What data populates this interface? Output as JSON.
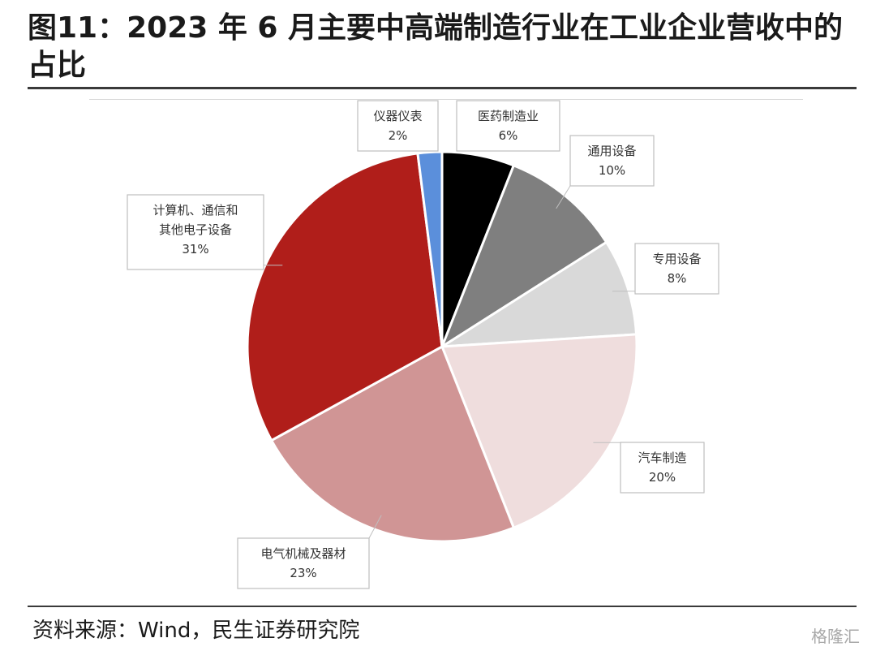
{
  "header": {
    "title": "图11：2023 年 6 月主要中高端制造行业在工业企业营收中的占比"
  },
  "footer": {
    "source": "资料来源：Wind，民生证券研究院",
    "watermark": "格隆汇"
  },
  "chart_data": {
    "type": "pie",
    "title": "",
    "slices": [
      {
        "label": "医药制造业",
        "value": 6,
        "value_label": "6%",
        "color": "#000000"
      },
      {
        "label": "通用设备",
        "value": 10,
        "value_label": "10%",
        "color": "#7f7f7f"
      },
      {
        "label": "专用设备",
        "value": 8,
        "value_label": "8%",
        "color": "#d9d9d9"
      },
      {
        "label": "汽车制造",
        "value": 20,
        "value_label": "20%",
        "color": "#efdddd"
      },
      {
        "label": "电气机械及器材",
        "value": 23,
        "value_label": "23%",
        "color": "#d09595"
      },
      {
        "label": "计算机、通信和其他电子设备",
        "value": 31,
        "value_label": "31%",
        "color": "#b01e1a"
      },
      {
        "label": "仪器仪表",
        "value": 2,
        "value_label": "2%",
        "color": "#5b8fdb"
      }
    ],
    "start_angle": "12 o'clock",
    "direction": "clockwise",
    "legend": "none"
  }
}
